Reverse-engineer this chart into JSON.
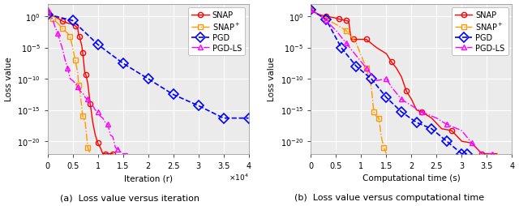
{
  "fig_width": 6.4,
  "fig_height": 2.55,
  "dpi": 100,
  "plot_a": {
    "title": "(a)  Loss value versus iteration",
    "xlabel": "Iteration (r)",
    "ylabel": "Loss value",
    "xlim": [
      0,
      40000
    ],
    "ylim": [
      1e-22,
      100.0
    ],
    "xticks": [
      0,
      5000,
      10000,
      15000,
      20000,
      25000,
      30000,
      35000,
      40000
    ],
    "xticklabels": [
      "0",
      "0.5",
      "1",
      "1.5",
      "2",
      "2.5",
      "3",
      "3.5",
      "4"
    ],
    "xscale_label": "$\\times10^4$",
    "yticks_log": [
      0,
      -5,
      -10,
      -15,
      -20
    ],
    "snap": {
      "x": [
        0,
        1000,
        2000,
        3000,
        4000,
        5000,
        5500,
        6000,
        6200,
        6400,
        6600,
        6800,
        7000,
        7200,
        7400,
        7600,
        7800,
        8000,
        8500,
        9000,
        9500,
        10000,
        10500,
        11000,
        11500,
        12000,
        12500,
        13000
      ],
      "y": [
        5,
        1.2,
        0.5,
        0.15,
        0.08,
        0.05,
        0.03,
        0.012,
        0.001,
        0.0005,
        0.0001,
        2e-05,
        1.5e-06,
        5e-08,
        1e-09,
        5e-10,
        1e-10,
        2e-11,
        1e-14,
        1e-17,
        1e-19,
        5e-21,
        1e-21,
        1e-22,
        1e-22,
        1e-22,
        1e-22,
        1e-22
      ],
      "color": "#ff0000",
      "marker": "o",
      "linestyle": "-",
      "markevery": 3,
      "markersize": 4.5,
      "linewidth": 1.0
    },
    "snap_plus": {
      "x": [
        0,
        500,
        1000,
        2000,
        3000,
        4000,
        4500,
        5000,
        5500,
        6000,
        6200,
        6500,
        7000,
        7500,
        8000,
        8500
      ],
      "y": [
        3,
        1.0,
        0.4,
        0.08,
        0.01,
        0.002,
        0.0005,
        1e-05,
        1e-07,
        1e-09,
        1e-11,
        5e-13,
        1e-16,
        1e-17,
        1e-21,
        1e-22
      ],
      "color": "#ff9900",
      "marker": "s",
      "linestyle": "-.",
      "markevery": 2,
      "markersize": 4.5,
      "linewidth": 1.0
    },
    "pgd": {
      "x": [
        0,
        5000,
        10000,
        15000,
        20000,
        25000,
        30000,
        35000,
        40000
      ],
      "y": [
        2,
        0.2,
        3e-05,
        3e-08,
        1e-10,
        3e-13,
        5e-15,
        5e-17,
        5e-17
      ],
      "color": "#0000ff",
      "marker": "D",
      "linestyle": "--",
      "markevery": 1,
      "markersize": 6,
      "linewidth": 1.2
    },
    "pgd_ls": {
      "x": [
        0,
        500,
        1000,
        1500,
        2000,
        2500,
        3000,
        3500,
        4000,
        4500,
        5000,
        5500,
        6000,
        6500,
        7000,
        7500,
        8000,
        8500,
        9000,
        9500,
        10000,
        10500,
        11000,
        11500,
        12000,
        12500,
        13000,
        13500,
        14000,
        15000,
        16000
      ],
      "y": [
        10,
        1.5,
        0.3,
        0.02,
        0.002,
        0.0001,
        5e-06,
        1e-07,
        5e-09,
        1e-10,
        5e-11,
        2e-11,
        5e-12,
        1e-12,
        5e-13,
        1e-13,
        5e-14,
        1e-14,
        5e-15,
        1e-15,
        5e-16,
        1e-16,
        5e-17,
        1e-17,
        5e-18,
        1e-19,
        5e-20,
        1e-21,
        5e-22,
        1e-22,
        1e-22
      ],
      "color": "#ff00ff",
      "marker": "^",
      "linestyle": "-.",
      "markevery": 4,
      "markersize": 4.5,
      "linewidth": 1.0
    }
  },
  "plot_b": {
    "title": "(b)  Loss value versus computational time",
    "xlabel": "Computational time (s)",
    "ylabel": "Loss value",
    "xlim": [
      0,
      4
    ],
    "ylim": [
      1e-22,
      100.0
    ],
    "xticks": [
      0,
      0.5,
      1.0,
      1.5,
      2.0,
      2.5,
      3.0,
      3.5,
      4.0
    ],
    "xticklabels": [
      "0",
      "0.5",
      "1",
      "1.5",
      "2",
      "2.5",
      "3",
      "3.5",
      "4"
    ],
    "yticks_log": [
      0,
      -5,
      -10,
      -15,
      -20
    ],
    "snap": {
      "x": [
        0,
        0.1,
        0.2,
        0.3,
        0.4,
        0.5,
        0.55,
        0.6,
        0.65,
        0.7,
        0.75,
        0.8,
        0.85,
        0.9,
        1.0,
        1.1,
        1.3,
        1.5,
        1.6,
        1.7,
        1.8,
        1.9,
        2.0,
        2.1,
        2.2,
        2.4,
        2.6,
        2.8,
        3.0,
        3.2,
        3.4,
        3.6,
        3.7
      ],
      "y": [
        10,
        3,
        1.5,
        1.0,
        0.7,
        0.5,
        0.35,
        0.3,
        0.25,
        0.2,
        0.15,
        0.0002,
        0.0002,
        0.0002,
        0.0002,
        0.0002,
        1e-05,
        1e-06,
        5e-08,
        5e-09,
        2e-10,
        1e-12,
        5e-14,
        1e-15,
        5e-16,
        5e-17,
        1e-18,
        5e-19,
        1e-20,
        5e-21,
        1e-22,
        1e-22,
        1e-22
      ],
      "color": "#ff0000",
      "marker": "o",
      "linestyle": "-",
      "markevery": 3,
      "markersize": 4.5,
      "linewidth": 1.0
    },
    "snap_plus": {
      "x": [
        0,
        0.15,
        0.3,
        0.5,
        0.7,
        0.9,
        1.1,
        1.2,
        1.25,
        1.3,
        1.35,
        1.4,
        1.45,
        1.5
      ],
      "y": [
        10,
        2,
        0.3,
        0.05,
        0.005,
        5e-05,
        5e-09,
        5e-12,
        5e-16,
        1e-16,
        5e-17,
        5e-20,
        1e-21,
        1e-22
      ],
      "color": "#ff9900",
      "marker": "s",
      "linestyle": "-.",
      "markevery": 2,
      "markersize": 4.5,
      "linewidth": 1.0
    },
    "pgd": {
      "x": [
        0,
        0.3,
        0.6,
        0.9,
        1.2,
        1.5,
        1.8,
        2.1,
        2.4,
        2.7,
        3.0,
        3.1
      ],
      "y": [
        10,
        0.3,
        1e-05,
        1e-08,
        1e-10,
        1e-13,
        5e-16,
        1e-17,
        1e-18,
        1e-20,
        1e-22,
        1e-22
      ],
      "color": "#0000ff",
      "marker": "D",
      "linestyle": "--",
      "markevery": 1,
      "markersize": 6,
      "linewidth": 1.2
    },
    "pgd_ls": {
      "x": [
        0,
        0.15,
        0.3,
        0.5,
        0.7,
        0.9,
        1.1,
        1.3,
        1.5,
        1.6,
        1.8,
        2.0,
        2.2,
        2.5,
        2.7,
        3.0,
        3.2,
        3.4,
        3.6
      ],
      "y": [
        10,
        2,
        0.2,
        0.005,
        5e-05,
        5e-07,
        5e-09,
        5e-11,
        1e-10,
        5e-12,
        5e-14,
        5e-15,
        5e-16,
        5e-17,
        5e-18,
        5e-19,
        5e-21,
        1e-22,
        1e-22
      ],
      "color": "#ff00ff",
      "marker": "^",
      "linestyle": "-.",
      "markevery": 2,
      "markersize": 4.5,
      "linewidth": 1.0
    }
  },
  "legend": {
    "snap_label": "SNAP",
    "snap_plus_label": "SNAP$^+$",
    "pgd_label": "PGD",
    "pgd_ls_label": "PGD-LS"
  },
  "background_color": "#ebebeb",
  "grid_color": "#ffffff",
  "fontsize": 7.5,
  "caption_fontsize": 8.0
}
